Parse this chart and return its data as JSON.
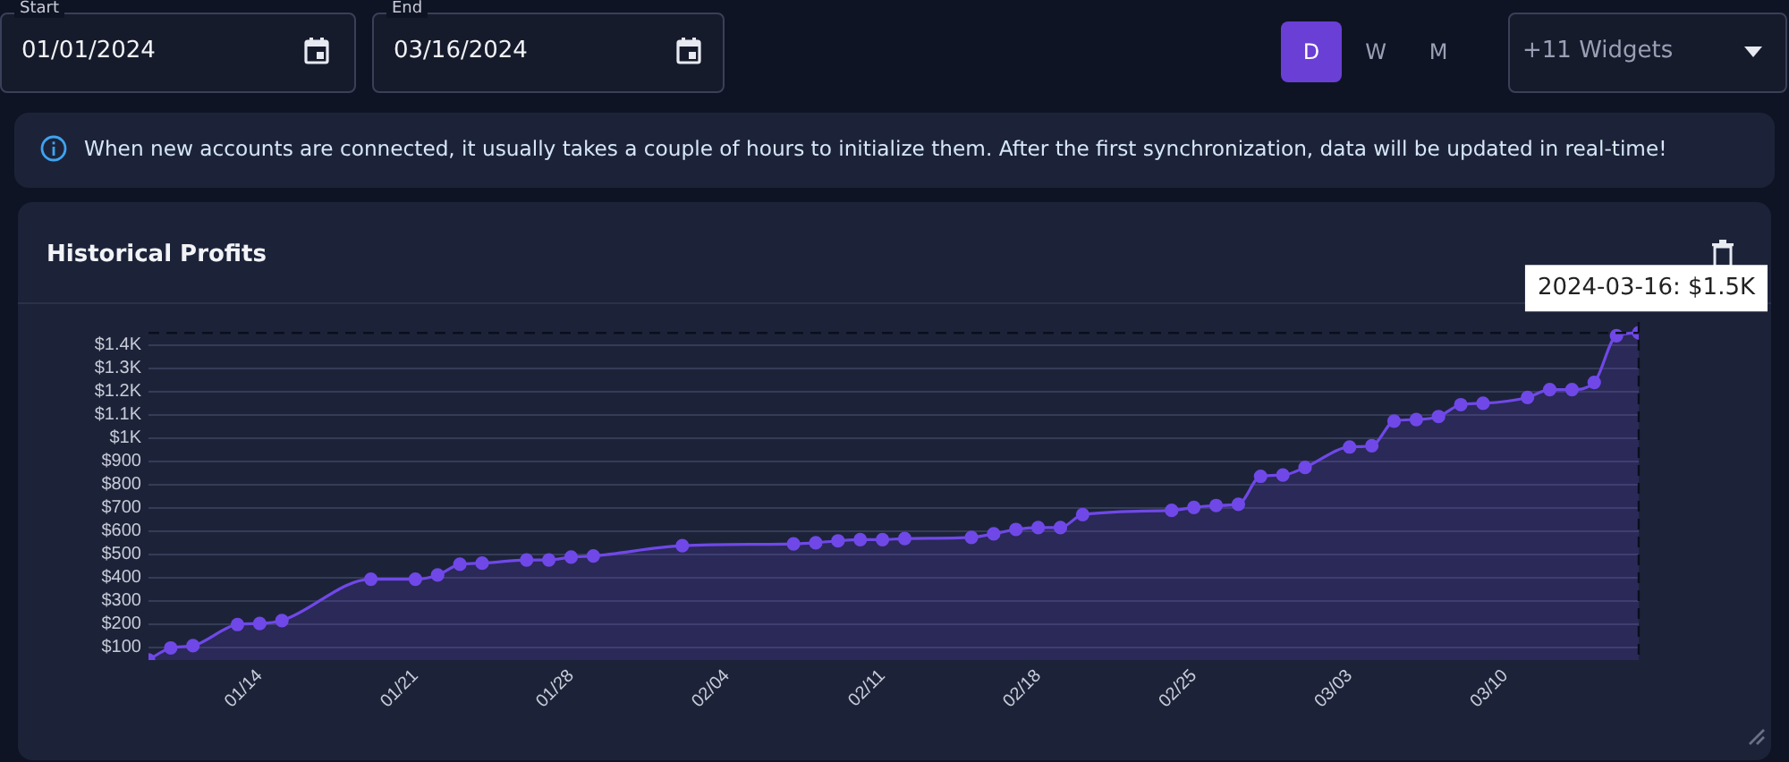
{
  "chart_data": {
    "type": "area",
    "title": "Historical Profits",
    "x": [
      "2024-01-09",
      "2024-01-10",
      "2024-01-11",
      "2024-01-13",
      "2024-01-14",
      "2024-01-15",
      "2024-01-19",
      "2024-01-21",
      "2024-01-22",
      "2024-01-23",
      "2024-01-24",
      "2024-01-26",
      "2024-01-27",
      "2024-01-28",
      "2024-01-29",
      "2024-02-02",
      "2024-02-07",
      "2024-02-08",
      "2024-02-09",
      "2024-02-10",
      "2024-02-11",
      "2024-02-12",
      "2024-02-15",
      "2024-02-16",
      "2024-02-17",
      "2024-02-18",
      "2024-02-19",
      "2024-02-20",
      "2024-02-24",
      "2024-02-25",
      "2024-02-26",
      "2024-02-27",
      "2024-02-28",
      "2024-02-29",
      "2024-03-01",
      "2024-03-03",
      "2024-03-04",
      "2024-03-05",
      "2024-03-06",
      "2024-03-07",
      "2024-03-08",
      "2024-03-09",
      "2024-03-11",
      "2024-03-12",
      "2024-03-13",
      "2024-03-14",
      "2024-03-15",
      "2024-03-16"
    ],
    "series": [
      {
        "color": "#7048e8",
        "values": [
          46,
          97,
          107,
          198,
          202,
          215,
          393,
          393,
          411,
          457,
          462,
          476,
          476,
          488,
          493,
          537,
          545,
          550,
          558,
          563,
          563,
          568,
          573,
          588,
          607,
          615,
          615,
          671,
          689,
          702,
          710,
          715,
          836,
          841,
          874,
          962,
          967,
          1073,
          1080,
          1093,
          1144,
          1150,
          1175,
          1209,
          1209,
          1240,
          1441,
          1453
        ]
      }
    ],
    "xlim": [
      "2024-01-09",
      "2024-03-16"
    ],
    "xticks": [
      {
        "value": "2024-01-14",
        "label": "01/14"
      },
      {
        "value": "2024-01-21",
        "label": "01/21"
      },
      {
        "value": "2024-01-28",
        "label": "01/28"
      },
      {
        "value": "2024-02-04",
        "label": "02/04"
      },
      {
        "value": "2024-02-11",
        "label": "02/11"
      },
      {
        "value": "2024-02-18",
        "label": "02/18"
      },
      {
        "value": "2024-02-25",
        "label": "02/25"
      },
      {
        "value": "2024-03-03",
        "label": "03/03"
      },
      {
        "value": "2024-03-10",
        "label": "03/10"
      }
    ],
    "ylim": [
      45,
      1500
    ],
    "yticks": [
      {
        "value": 100,
        "label": "$100"
      },
      {
        "value": 200,
        "label": "$200"
      },
      {
        "value": 300,
        "label": "$300"
      },
      {
        "value": 400,
        "label": "$400"
      },
      {
        "value": 500,
        "label": "$500"
      },
      {
        "value": 600,
        "label": "$600"
      },
      {
        "value": 700,
        "label": "$700"
      },
      {
        "value": 800,
        "label": "$800"
      },
      {
        "value": 900,
        "label": "$900"
      },
      {
        "value": 1000,
        "label": "$1K"
      },
      {
        "value": 1100,
        "label": "$1.1K"
      },
      {
        "value": 1200,
        "label": "$1.2K"
      },
      {
        "value": 1300,
        "label": "$1.3K"
      },
      {
        "value": 1400,
        "label": "$1.4K"
      }
    ],
    "grid": "y",
    "legend": false,
    "marker": "circle",
    "line_style": "solid",
    "ref_lines": [
      {
        "axis": "y",
        "value": 1453,
        "color": "#0b0f1c",
        "line_style": "dashed"
      },
      {
        "axis": "x",
        "value": "2024-03-16",
        "color": "#0b0f1c",
        "line_style": "dashed"
      }
    ],
    "annotations": [
      "Start",
      "01/01/2024",
      "End",
      "03/16/2024",
      "D",
      "W",
      "M",
      "+11 Widgets",
      "When new accounts are connected, it usually takes a couple of hours to initialize them. After the first synchronization, data will be updated in real-time!",
      {
        "text": "2024-03-16: $1.5K",
        "x": "2024-03-16",
        "y": 1453
      }
    ]
  }
}
